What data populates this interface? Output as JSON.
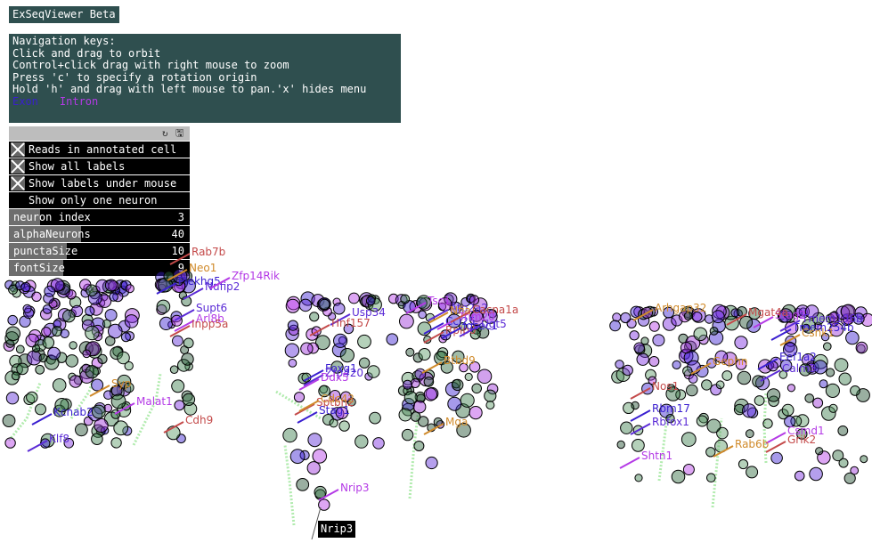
{
  "app": {
    "title": "ExSeqViewer Beta"
  },
  "help": {
    "lines": [
      "Navigation keys:",
      "Click and drag to orbit",
      "Control+click drag with right mouse to zoom",
      "Press 'c' to specify a rotation origin",
      "Hold 'h' and drag with left mouse to pan.'x' hides menu"
    ],
    "legend": {
      "exon": "Exon",
      "intron": "Intron",
      "exon_color": "#3a1fd0",
      "intron_color": "#b43ae6"
    }
  },
  "gui": {
    "icons": [
      "refresh-icon",
      "save-icon"
    ],
    "toggles": [
      {
        "label": "Reads in annotated cell",
        "checked": true
      },
      {
        "label": "Show all labels",
        "checked": true
      },
      {
        "label": "Show labels under mouse",
        "checked": true
      },
      {
        "label": "Show only one neuron",
        "checked": false
      }
    ],
    "sliders": [
      {
        "label": "neuron index",
        "value": "3",
        "fraction": 0.17
      },
      {
        "label": "alphaNeurons",
        "value": "40",
        "fraction": 0.4
      },
      {
        "label": "punctaSize",
        "value": "10",
        "fraction": 0.32
      },
      {
        "label": "fontSize",
        "value": "9",
        "fraction": 0.3
      }
    ]
  },
  "gene_labels": [
    "Klf8",
    "Malat1",
    "Cdh9",
    "Syp",
    "Kcnab2",
    "Supt6",
    "Arl8b",
    "Inpp5a",
    "Neo1",
    "Plekhg5",
    "Nufip2",
    "Zfp14Rik",
    "Rab7b",
    "Mga",
    "Foxg1",
    "Zfp420",
    "Ddx5",
    "Sptbn2",
    "Cdc42",
    "Stag1",
    "Usp34",
    "Nrip3",
    "Hnf157",
    "Btbd9",
    "Ccl25",
    "Atp2a2",
    "Tsc1",
    "Rplp0",
    "Nfia",
    "Iqsec1",
    "Ugt5",
    "Trim20",
    "Cacna1a",
    "Arhgap32",
    "Eef1a2",
    "Calm3",
    "Csmd1",
    "Grik2",
    "Rab6b",
    "Rbm17",
    "Rbfox1",
    "Shtn1",
    "Nos1",
    "Gephn",
    "Tmem254b",
    "Tmem196b",
    "Stag2",
    "Mgat4a",
    "Csnk1"
  ],
  "hover": {
    "label": "Nrip3"
  }
}
